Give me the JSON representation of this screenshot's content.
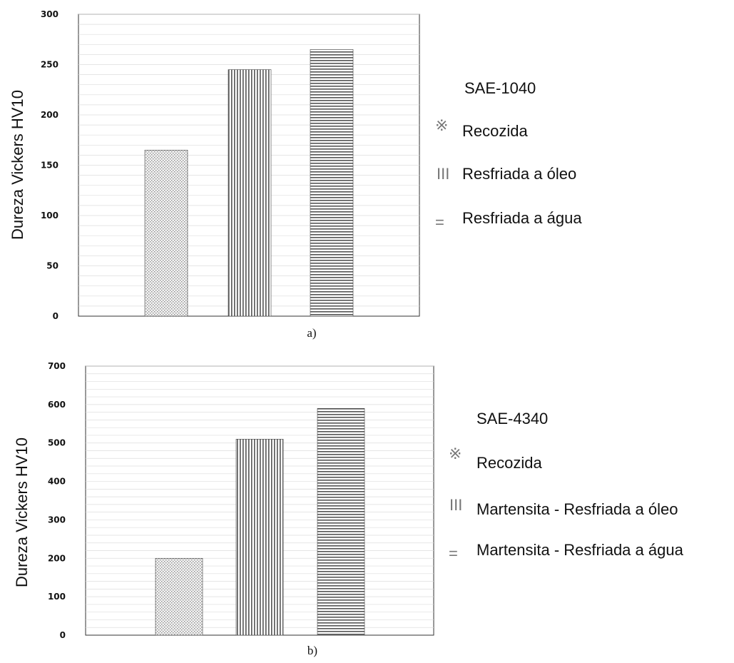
{
  "chart_data": [
    {
      "type": "bar",
      "panel_label": "a)",
      "ylabel": "Dureza Vickers HV10",
      "ylim": [
        0,
        300
      ],
      "yticks": [
        0,
        50,
        100,
        150,
        200,
        250,
        300
      ],
      "grid": true,
      "legend_position": "right",
      "legend_title": "SAE-1040",
      "series": [
        {
          "name": "Recozida",
          "pattern": "dots",
          "values": [
            165
          ]
        },
        {
          "name": "Resfriada a óleo",
          "pattern": "vertical-lines",
          "values": [
            245
          ]
        },
        {
          "name": "Resfriada a água",
          "pattern": "horizontal-lines",
          "values": [
            265
          ]
        }
      ]
    },
    {
      "type": "bar",
      "panel_label": "b)",
      "ylabel": "Dureza Vickers HV10",
      "ylim": [
        0,
        700
      ],
      "yticks": [
        0,
        100,
        200,
        300,
        400,
        500,
        600,
        700
      ],
      "grid": true,
      "legend_position": "right",
      "legend_title": "SAE-4340",
      "series": [
        {
          "name": "Recozida",
          "pattern": "dots",
          "values": [
            200
          ]
        },
        {
          "name": "Martensita - Resfriada a óleo",
          "pattern": "vertical-lines",
          "values": [
            510
          ]
        },
        {
          "name": "Martensita - Resfriada a água",
          "pattern": "horizontal-lines",
          "values": [
            590
          ]
        }
      ]
    }
  ],
  "legend_symbols": {
    "dots": "※",
    "vertical-lines": "III",
    "horizontal-lines": "="
  },
  "colors": {
    "bar_stroke": "#444444",
    "grid": "#dddddd",
    "axis": "#333333",
    "legend_symbol": "#777777"
  }
}
